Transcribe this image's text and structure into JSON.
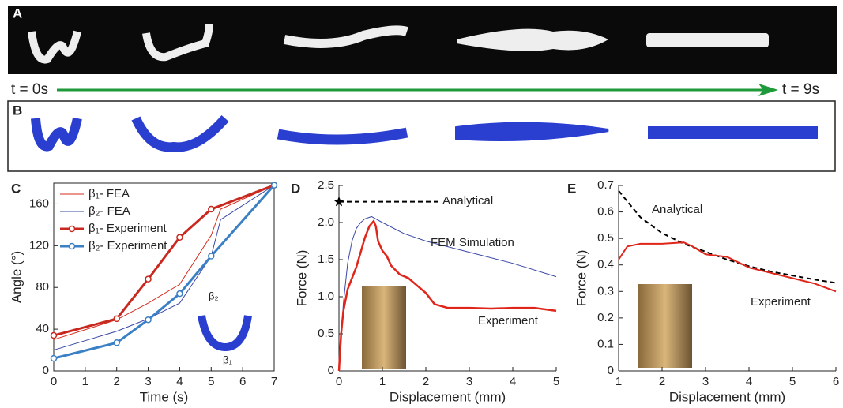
{
  "panel_labels": [
    "A",
    "B",
    "C",
    "D",
    "E"
  ],
  "timeline": {
    "start": "t = 0s",
    "end": "t = 9s"
  },
  "chart_data": [
    {
      "type": "line",
      "xlabel": "Time (s)",
      "ylabel": "Angle (°)",
      "xlim": [
        0,
        7
      ],
      "ylim": [
        0,
        180
      ],
      "xticks": [
        0,
        1,
        2,
        3,
        4,
        5,
        6,
        7
      ],
      "yticks": [
        0,
        40,
        80,
        120,
        160
      ],
      "box": true,
      "legend": "upper left",
      "annotations": [
        "β₂",
        "β₁"
      ],
      "series": [
        {
          "name": "β₁- FEA",
          "color": "#d62d1f",
          "width": 1,
          "x": [
            0,
            2,
            3,
            4,
            5,
            5.3,
            7
          ],
          "values": [
            30,
            49,
            65,
            83,
            130,
            155,
            178
          ]
        },
        {
          "name": "β₂- FEA",
          "color": "#3a48a8",
          "width": 1,
          "x": [
            0,
            2,
            3,
            4,
            5,
            5.3,
            7
          ],
          "values": [
            20,
            38,
            50,
            65,
            110,
            145,
            178
          ]
        },
        {
          "name": "β₁- Experiment",
          "color": "#c8281e",
          "width": 3,
          "marker": "circle",
          "x": [
            0,
            2,
            3,
            4,
            5,
            7
          ],
          "values": [
            34,
            50,
            88,
            128,
            155,
            178
          ]
        },
        {
          "name": "β₂- Experiment",
          "color": "#3b7fc4",
          "width": 3,
          "marker": "circle",
          "x": [
            0,
            2,
            3,
            4,
            5,
            7
          ],
          "values": [
            12,
            27,
            49,
            74,
            110,
            178
          ]
        }
      ]
    },
    {
      "type": "line",
      "xlabel": "Displacement (mm)",
      "ylabel": "Force (N)",
      "xlim": [
        0,
        5
      ],
      "ylim": [
        0,
        2.5
      ],
      "xticks": [
        0,
        1,
        2,
        3,
        4,
        5
      ],
      "yticks": [
        0,
        0.5,
        {
          "value": 1,
          "label": "1.0"
        },
        1.5,
        {
          "value": 2,
          "label": "2.0"
        },
        2.5
      ],
      "box": false,
      "series": [
        {
          "name": "Analytical",
          "color": "#000000",
          "width": 2,
          "dash": true,
          "marker": "star",
          "x": [
            0,
            2.3
          ],
          "values": [
            2.28,
            2.28
          ]
        },
        {
          "name": "FEM Simulation",
          "color": "#3a48a8",
          "width": 1,
          "x": [
            0,
            0.1,
            0.2,
            0.3,
            0.4,
            0.5,
            0.6,
            0.75,
            1,
            1.5,
            2,
            3,
            4,
            5
          ],
          "values": [
            0,
            0.9,
            1.45,
            1.75,
            1.92,
            2.0,
            2.05,
            2.08,
            2.0,
            1.85,
            1.75,
            1.6,
            1.45,
            1.27
          ]
        },
        {
          "name": "Experiment",
          "color": "#e0261a",
          "width": 2.5,
          "x": [
            0,
            0.05,
            0.1,
            0.2,
            0.3,
            0.4,
            0.5,
            0.6,
            0.7,
            0.8,
            0.85,
            0.9,
            1.0,
            1.1,
            1.2,
            1.4,
            1.6,
            1.8,
            1.9,
            2.0,
            2.2,
            2.5,
            3,
            3.5,
            4,
            4.5,
            5
          ],
          "values": [
            0,
            0.5,
            0.8,
            1.1,
            1.25,
            1.4,
            1.6,
            1.8,
            1.95,
            2.02,
            1.95,
            1.75,
            1.62,
            1.55,
            1.42,
            1.3,
            1.25,
            1.15,
            1.1,
            1.05,
            0.9,
            0.85,
            0.85,
            0.84,
            0.85,
            0.85,
            0.81
          ]
        }
      ]
    },
    {
      "type": "line",
      "xlabel": "Displacement (mm)",
      "ylabel": "Force (N)",
      "xlim": [
        1,
        6
      ],
      "ylim": [
        0,
        0.7
      ],
      "xticks": [
        1,
        2,
        3,
        4,
        5,
        6
      ],
      "yticks": [
        0,
        0.1,
        0.2,
        0.3,
        0.4,
        0.5,
        0.6,
        0.7
      ],
      "box": false,
      "series": [
        {
          "name": "Analytical",
          "color": "#000000",
          "width": 2,
          "dash": true,
          "x": [
            1,
            1.5,
            2,
            2.5,
            3,
            3.5,
            4,
            4.5,
            5,
            5.5,
            6
          ],
          "values": [
            0.68,
            0.58,
            0.52,
            0.48,
            0.45,
            0.42,
            0.395,
            0.375,
            0.36,
            0.345,
            0.332
          ]
        },
        {
          "name": "Experiment",
          "color": "#e0261a",
          "width": 2,
          "x": [
            1,
            1.2,
            1.5,
            2,
            2.5,
            2.7,
            3,
            3.5,
            4,
            4.5,
            5,
            5.5,
            6
          ],
          "values": [
            0.42,
            0.47,
            0.48,
            0.48,
            0.485,
            0.47,
            0.44,
            0.43,
            0.39,
            0.37,
            0.35,
            0.33,
            0.3
          ]
        }
      ]
    }
  ]
}
